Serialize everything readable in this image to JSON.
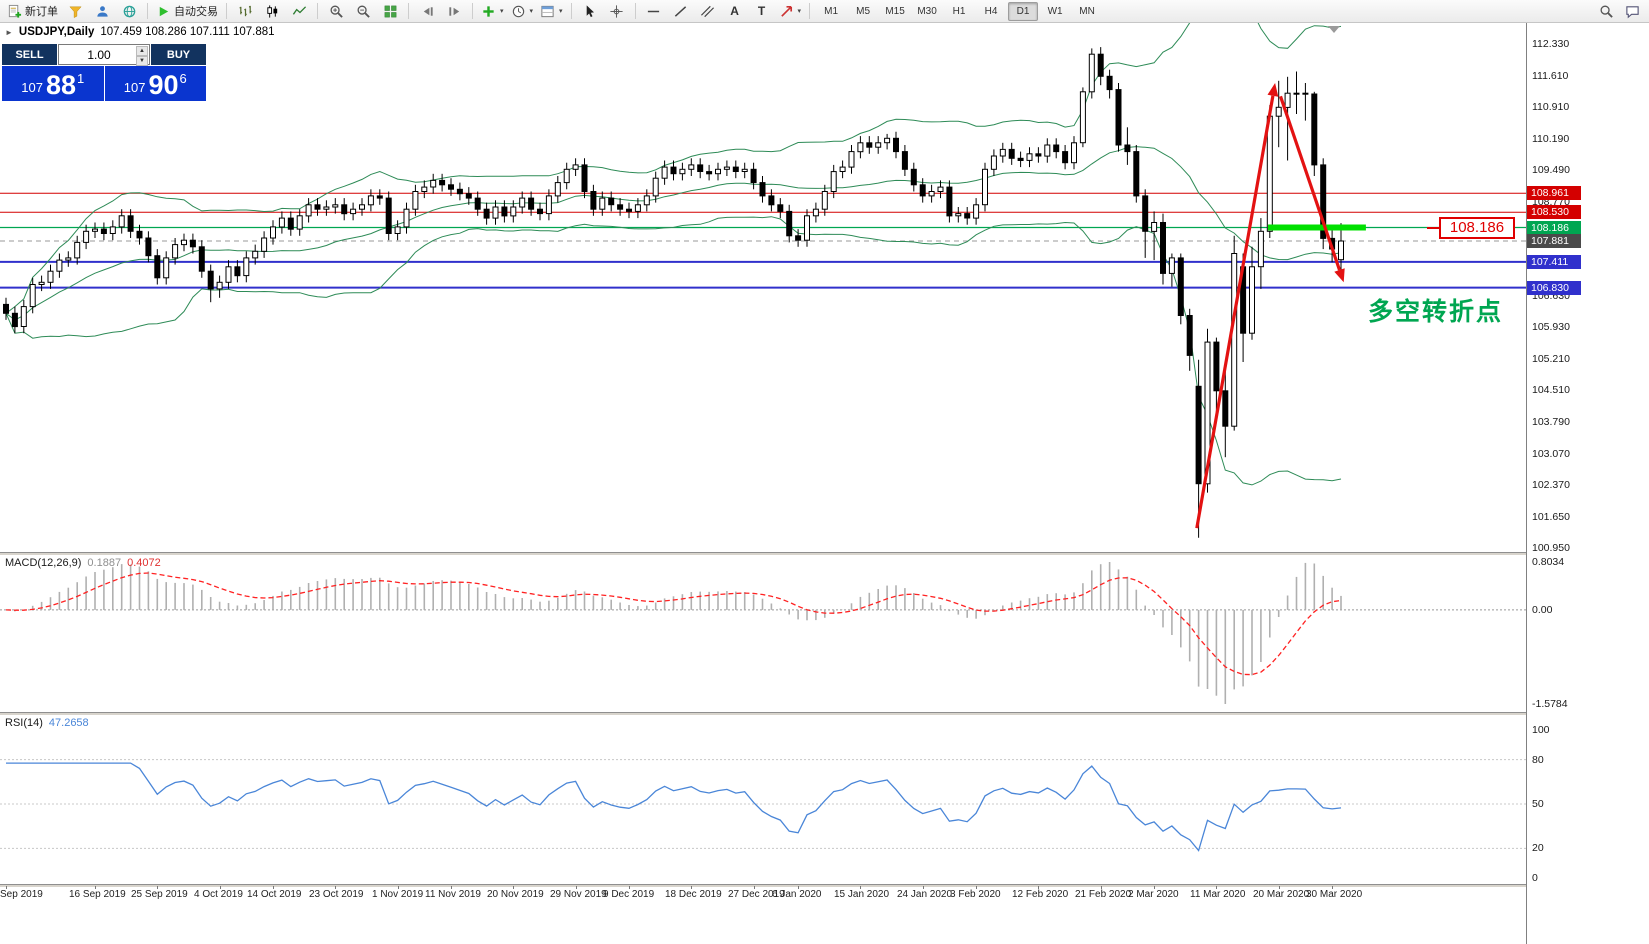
{
  "icons": {
    "caret_down": "▾",
    "collapse_marker": "►",
    "spinner_up": "▲",
    "spinner_down": "▼"
  },
  "toolbar": {
    "new_order_label": "新订单",
    "autotrading_label": "自动交易",
    "timeframes": [
      "M1",
      "M5",
      "M15",
      "M30",
      "H1",
      "H4",
      "D1",
      "W1",
      "MN"
    ],
    "active_timeframe": "D1",
    "tool_text_icons": {
      "text": "A",
      "text_label": "T"
    }
  },
  "order_panel": {
    "sell_label": "SELL",
    "buy_label": "BUY",
    "volume": "1.00",
    "sell": {
      "prefix": "107",
      "big": "88",
      "sup": "1"
    },
    "buy": {
      "prefix": "107",
      "big": "90",
      "sup": "6"
    }
  },
  "chart": {
    "symbol": "USDJPY,Daily",
    "ohlc": "107.459 108.286 107.111 107.881",
    "annotation_text": "多空转折点",
    "callout_label": "108.186",
    "axis": {
      "plain_labels": [
        "112.330",
        "111.610",
        "110.910",
        "110.190",
        "109.490",
        "108.770",
        "106.630",
        "105.930",
        "105.210",
        "104.510",
        "103.790",
        "103.070",
        "102.370",
        "101.650",
        "100.950"
      ],
      "badges": [
        {
          "value": "108.961",
          "color": "#d40000"
        },
        {
          "value": "108.530",
          "color": "#d40000"
        },
        {
          "value": "108.186",
          "color": "#00a651"
        },
        {
          "value": "107.881",
          "color": "#4a4a4a"
        },
        {
          "value": "107.411",
          "color": "#3030cc"
        },
        {
          "value": "106.830",
          "color": "#3030cc"
        }
      ]
    },
    "dates": {
      "labels": [
        "Sep 2019",
        "16 Sep 2019",
        "25 Sep 2019",
        "4 Oct 2019",
        "14 Oct 2019",
        "23 Oct 2019",
        "1 Nov 2019",
        "11 Nov 2019",
        "20 Nov 2019",
        "29 Nov 2019",
        "9 Dec 2019",
        "18 Dec 2019",
        "27 Dec 2019",
        "6 Jan 2020",
        "15 Jan 2020",
        "24 Jan 2020",
        "3 Feb 2020",
        "12 Feb 2020",
        "21 Feb 2020",
        "2 Mar 2020",
        "11 Mar 2020",
        "20 Mar 2020",
        "30 Mar 2020"
      ],
      "indices": [
        0,
        10,
        17,
        24,
        30,
        37,
        44,
        50,
        57,
        64,
        70,
        77,
        84,
        89,
        96,
        103,
        109,
        116,
        123,
        129,
        136,
        143,
        149
      ]
    }
  },
  "macd": {
    "name": "MACD(12,26,9)",
    "value_main": "0.1887",
    "value_signal": "0.4072",
    "axis_labels": {
      "max": "0.8034",
      "zero": "0.00",
      "min": "-1.5784"
    }
  },
  "rsi": {
    "name": "RSI(14)",
    "value": "47.2658",
    "axis_labels": [
      "100",
      "80",
      "50",
      "20",
      "0"
    ]
  },
  "chart_data": {
    "type": "candlestick",
    "symbol": "USDJPY",
    "timeframe": "Daily",
    "last_ohlc": {
      "open": 107.459,
      "high": 108.286,
      "low": 107.111,
      "close": 107.881
    },
    "y_range": [
      100.95,
      112.33
    ],
    "bollinger": {
      "period": 20,
      "deviation": 2
    },
    "indicators": {
      "macd": {
        "fast": 12,
        "slow": 26,
        "signal": 9,
        "axis_max": 0.8034,
        "axis_min": -1.5784
      },
      "rsi": {
        "period": 14,
        "levels": [
          80,
          50,
          20
        ]
      }
    },
    "levels": [
      {
        "price": 108.961,
        "color": "#d40000",
        "width": 1
      },
      {
        "price": 108.53,
        "color": "#d40000",
        "width": 1
      },
      {
        "price": 108.186,
        "color": "#00a651",
        "width": 1.2
      },
      {
        "price": 107.881,
        "color": "#9a9a9a",
        "width": 1,
        "style": "dashed"
      },
      {
        "price": 107.411,
        "color": "#3030cc",
        "width": 2
      },
      {
        "price": 106.83,
        "color": "#3030cc",
        "width": 2
      }
    ],
    "annotations": {
      "arrows": [
        {
          "from_idx": 133.8,
          "from_price": 101.4,
          "to_idx": 142.6,
          "to_price": 111.45
        },
        {
          "from_idx": 143.2,
          "from_price": 111.15,
          "to_idx": 150.3,
          "to_price": 106.95
        }
      ],
      "highlight": {
        "price": 108.186,
        "from_idx": 141.8,
        "to_idx": 152.8
      },
      "text": {
        "label": "多空转折点",
        "idx": 153,
        "price": 106.15
      },
      "callout": {
        "label": "108.186",
        "idx": 161,
        "price": 108.186
      }
    },
    "colors": {
      "bull": "#ffffff",
      "bear": "#000000",
      "wick": "#000000",
      "bollinger": "#2e8b57",
      "macd_hist": "#b0b0b0",
      "macd_signal": "#ff2222",
      "rsi_line": "#4a86d8",
      "arrow": "#e31212",
      "highlight": "#00e000"
    },
    "candles": [
      [
        106.45,
        106.6,
        106.1,
        106.25
      ],
      [
        106.25,
        106.4,
        105.8,
        105.95
      ],
      [
        105.95,
        106.55,
        105.8,
        106.4
      ],
      [
        106.4,
        107.05,
        106.25,
        106.9
      ],
      [
        106.9,
        107.1,
        106.75,
        106.95
      ],
      [
        106.95,
        107.35,
        106.8,
        107.2
      ],
      [
        107.2,
        107.6,
        107.05,
        107.45
      ],
      [
        107.45,
        107.65,
        107.3,
        107.5
      ],
      [
        107.5,
        108.0,
        107.35,
        107.85
      ],
      [
        107.85,
        108.25,
        107.7,
        108.1
      ],
      [
        108.1,
        108.3,
        107.95,
        108.15
      ],
      [
        108.15,
        108.3,
        107.9,
        108.05
      ],
      [
        108.05,
        108.35,
        107.9,
        108.2
      ],
      [
        108.2,
        108.6,
        108.05,
        108.45
      ],
      [
        108.45,
        108.6,
        107.95,
        108.1
      ],
      [
        108.1,
        108.25,
        107.8,
        107.95
      ],
      [
        107.95,
        108.1,
        107.4,
        107.55
      ],
      [
        107.55,
        107.7,
        106.9,
        107.05
      ],
      [
        107.05,
        107.65,
        106.9,
        107.5
      ],
      [
        107.5,
        107.95,
        107.35,
        107.8
      ],
      [
        107.8,
        108.05,
        107.65,
        107.9
      ],
      [
        107.9,
        108.05,
        107.6,
        107.75
      ],
      [
        107.75,
        107.9,
        107.05,
        107.2
      ],
      [
        107.2,
        107.35,
        106.5,
        106.8
      ],
      [
        106.8,
        107.1,
        106.6,
        106.95
      ],
      [
        106.95,
        107.45,
        106.8,
        107.3
      ],
      [
        107.3,
        107.45,
        106.95,
        107.1
      ],
      [
        107.1,
        107.65,
        106.95,
        107.5
      ],
      [
        107.5,
        107.8,
        107.35,
        107.65
      ],
      [
        107.65,
        108.1,
        107.5,
        107.95
      ],
      [
        107.95,
        108.35,
        107.8,
        108.2
      ],
      [
        108.2,
        108.55,
        108.05,
        108.4
      ],
      [
        108.4,
        108.55,
        108.0,
        108.15
      ],
      [
        108.15,
        108.6,
        108.0,
        108.45
      ],
      [
        108.45,
        108.85,
        108.3,
        108.7
      ],
      [
        108.7,
        108.85,
        108.45,
        108.6
      ],
      [
        108.6,
        108.8,
        108.45,
        108.65
      ],
      [
        108.65,
        108.85,
        108.5,
        108.7
      ],
      [
        108.7,
        108.85,
        108.35,
        108.5
      ],
      [
        108.5,
        108.75,
        108.35,
        108.6
      ],
      [
        108.6,
        108.85,
        108.45,
        108.7
      ],
      [
        108.7,
        109.05,
        108.55,
        108.9
      ],
      [
        108.9,
        109.05,
        108.7,
        108.85
      ],
      [
        108.85,
        109.0,
        107.9,
        108.05
      ],
      [
        108.05,
        108.35,
        107.9,
        108.2
      ],
      [
        108.2,
        108.75,
        108.05,
        108.6
      ],
      [
        108.6,
        109.15,
        108.45,
        109.0
      ],
      [
        109.0,
        109.25,
        108.85,
        109.1
      ],
      [
        109.1,
        109.4,
        108.95,
        109.25
      ],
      [
        109.25,
        109.4,
        109.0,
        109.15
      ],
      [
        109.15,
        109.3,
        108.9,
        109.05
      ],
      [
        109.05,
        109.2,
        108.8,
        108.95
      ],
      [
        108.95,
        109.1,
        108.7,
        108.85
      ],
      [
        108.85,
        109.0,
        108.45,
        108.6
      ],
      [
        108.6,
        108.75,
        108.25,
        108.4
      ],
      [
        108.4,
        108.8,
        108.25,
        108.65
      ],
      [
        108.65,
        108.8,
        108.3,
        108.45
      ],
      [
        108.45,
        108.8,
        108.3,
        108.65
      ],
      [
        108.65,
        109.0,
        108.5,
        108.85
      ],
      [
        108.85,
        109.0,
        108.45,
        108.6
      ],
      [
        108.6,
        108.75,
        108.35,
        108.5
      ],
      [
        108.5,
        109.05,
        108.35,
        108.9
      ],
      [
        108.9,
        109.35,
        108.75,
        109.2
      ],
      [
        109.2,
        109.65,
        109.05,
        109.5
      ],
      [
        109.5,
        109.75,
        109.35,
        109.6
      ],
      [
        109.6,
        109.75,
        108.85,
        109.0
      ],
      [
        109.0,
        109.15,
        108.45,
        108.6
      ],
      [
        108.6,
        109.0,
        108.45,
        108.85
      ],
      [
        108.85,
        109.0,
        108.55,
        108.7
      ],
      [
        108.7,
        108.85,
        108.45,
        108.6
      ],
      [
        108.6,
        108.75,
        108.4,
        108.55
      ],
      [
        108.55,
        108.85,
        108.4,
        108.7
      ],
      [
        108.7,
        109.05,
        108.55,
        108.9
      ],
      [
        108.9,
        109.45,
        108.75,
        109.3
      ],
      [
        109.3,
        109.7,
        109.15,
        109.55
      ],
      [
        109.55,
        109.7,
        109.25,
        109.4
      ],
      [
        109.4,
        109.65,
        109.25,
        109.5
      ],
      [
        109.5,
        109.75,
        109.35,
        109.6
      ],
      [
        109.6,
        109.75,
        109.3,
        109.45
      ],
      [
        109.45,
        109.6,
        109.25,
        109.4
      ],
      [
        109.4,
        109.65,
        109.25,
        109.5
      ],
      [
        109.5,
        109.7,
        109.35,
        109.55
      ],
      [
        109.55,
        109.7,
        109.3,
        109.45
      ],
      [
        109.45,
        109.65,
        109.3,
        109.5
      ],
      [
        109.5,
        109.65,
        109.05,
        109.2
      ],
      [
        109.2,
        109.35,
        108.75,
        108.9
      ],
      [
        108.9,
        109.05,
        108.55,
        108.7
      ],
      [
        108.7,
        108.85,
        108.4,
        108.55
      ],
      [
        108.55,
        108.7,
        107.85,
        108.0
      ],
      [
        108.0,
        108.15,
        107.75,
        107.9
      ],
      [
        107.9,
        108.6,
        107.75,
        108.45
      ],
      [
        108.45,
        108.75,
        108.3,
        108.6
      ],
      [
        108.6,
        109.15,
        108.45,
        109.0
      ],
      [
        109.0,
        109.6,
        108.85,
        109.45
      ],
      [
        109.45,
        109.7,
        109.3,
        109.55
      ],
      [
        109.55,
        110.05,
        109.4,
        109.9
      ],
      [
        109.9,
        110.25,
        109.75,
        110.1
      ],
      [
        110.1,
        110.25,
        109.85,
        110.0
      ],
      [
        110.0,
        110.25,
        109.85,
        110.1
      ],
      [
        110.1,
        110.3,
        109.95,
        110.2
      ],
      [
        110.2,
        110.35,
        109.75,
        109.9
      ],
      [
        109.9,
        110.05,
        109.35,
        109.5
      ],
      [
        109.5,
        109.65,
        109.0,
        109.15
      ],
      [
        109.15,
        109.3,
        108.75,
        108.9
      ],
      [
        108.9,
        109.15,
        108.75,
        109.0
      ],
      [
        109.0,
        109.25,
        108.85,
        109.1
      ],
      [
        109.1,
        109.25,
        108.3,
        108.45
      ],
      [
        108.45,
        108.65,
        108.3,
        108.5
      ],
      [
        108.5,
        108.65,
        108.25,
        108.4
      ],
      [
        108.4,
        108.85,
        108.25,
        108.7
      ],
      [
        108.7,
        109.65,
        108.55,
        109.5
      ],
      [
        109.5,
        109.95,
        109.35,
        109.8
      ],
      [
        109.8,
        110.1,
        109.65,
        109.95
      ],
      [
        109.95,
        110.1,
        109.6,
        109.75
      ],
      [
        109.75,
        109.9,
        109.55,
        109.7
      ],
      [
        109.7,
        110.0,
        109.55,
        109.85
      ],
      [
        109.85,
        110.0,
        109.65,
        109.8
      ],
      [
        109.8,
        110.2,
        109.65,
        110.05
      ],
      [
        110.05,
        110.2,
        109.75,
        109.9
      ],
      [
        109.9,
        110.05,
        109.5,
        109.65
      ],
      [
        109.65,
        110.25,
        109.5,
        110.1
      ],
      [
        110.1,
        111.35,
        110.0,
        111.25
      ],
      [
        111.25,
        112.23,
        111.1,
        112.1
      ],
      [
        112.1,
        112.26,
        111.4,
        111.6
      ],
      [
        111.6,
        111.75,
        111.1,
        111.3
      ],
      [
        111.3,
        111.45,
        109.9,
        110.05
      ],
      [
        110.05,
        110.45,
        109.6,
        109.9
      ],
      [
        109.9,
        110.05,
        108.75,
        108.9
      ],
      [
        108.9,
        109.05,
        107.5,
        108.1
      ],
      [
        108.1,
        108.55,
        107.45,
        108.3
      ],
      [
        108.3,
        108.5,
        106.9,
        107.15
      ],
      [
        107.15,
        107.6,
        106.85,
        107.5
      ],
      [
        107.5,
        107.6,
        106.0,
        106.2
      ],
      [
        106.2,
        106.35,
        104.95,
        105.3
      ],
      [
        104.6,
        105.2,
        101.18,
        102.4
      ],
      [
        102.4,
        105.9,
        102.2,
        105.6
      ],
      [
        105.6,
        105.7,
        103.9,
        104.5
      ],
      [
        104.5,
        105.05,
        103.0,
        103.7
      ],
      [
        103.7,
        108.0,
        103.6,
        107.6
      ],
      [
        107.3,
        107.6,
        105.15,
        105.8
      ],
      [
        105.8,
        107.75,
        105.65,
        107.3
      ],
      [
        107.3,
        108.4,
        106.8,
        108.1
      ],
      [
        108.1,
        110.95,
        107.95,
        110.7
      ],
      [
        110.7,
        111.5,
        110.0,
        110.9
      ],
      [
        110.9,
        111.59,
        109.7,
        111.22
      ],
      [
        111.22,
        111.71,
        110.75,
        111.22
      ],
      [
        111.22,
        111.45,
        110.6,
        111.2
      ],
      [
        111.2,
        111.25,
        109.35,
        109.6
      ],
      [
        109.6,
        109.75,
        107.7,
        107.94
      ],
      [
        107.94,
        108.25,
        107.4,
        107.7
      ],
      [
        107.459,
        108.286,
        107.111,
        107.881
      ]
    ]
  }
}
